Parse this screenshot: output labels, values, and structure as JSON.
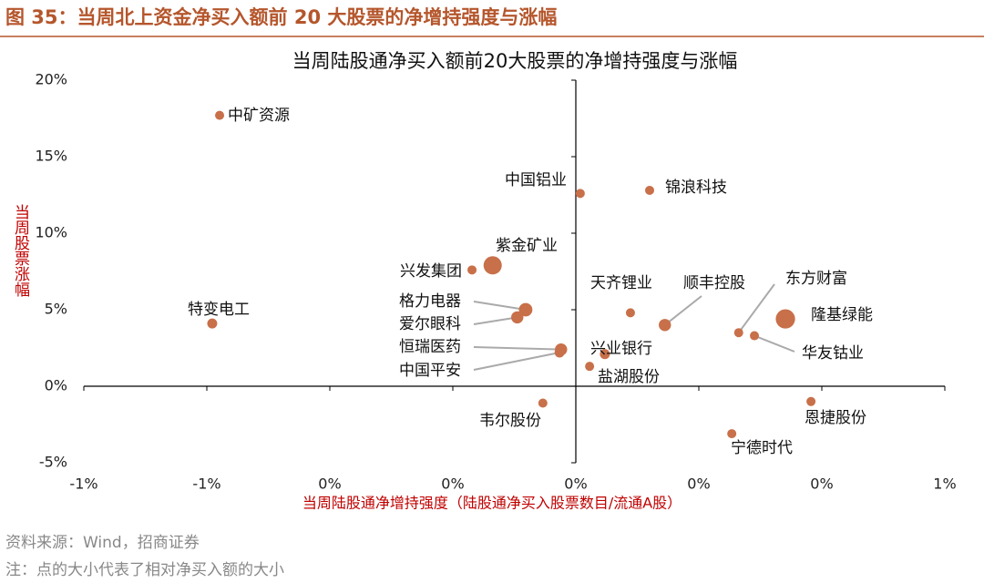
{
  "header": "图 35：当周北上资金净买入额前 20 大股票的净增持强度与涨幅",
  "footer": {
    "source": "资料来源：Wind，招商证券",
    "note": "注：点的大小代表了相对净买入额的大小"
  },
  "chart_data": {
    "type": "scatter",
    "title": "当周陆股通净买入额前20大股票的净增持强度与涨幅",
    "x_label": "当周陆股通净增持强度（陆股通净买入股票数目/流通A股）",
    "y_label": "当周股票涨幅",
    "color": "#c8704a",
    "xlim": [
      -1,
      0.75
    ],
    "xticks": [
      {
        "value": -1,
        "label": "-1%"
      },
      {
        "value": -0.75,
        "label": "-1%"
      },
      {
        "value": -0.5,
        "label": "0%"
      },
      {
        "value": -0.25,
        "label": "0%"
      },
      {
        "value": 0,
        "label": "0%"
      },
      {
        "value": 0.25,
        "label": "0%"
      },
      {
        "value": 0.5,
        "label": "0%"
      },
      {
        "value": 0.75,
        "label": "1%"
      }
    ],
    "ylim": [
      -5,
      20
    ],
    "yticks": [
      {
        "value": -5,
        "label": "-5%"
      },
      {
        "value": 0,
        "label": "0%"
      },
      {
        "value": 5,
        "label": "5%"
      },
      {
        "value": 10,
        "label": "10%"
      },
      {
        "value": 15,
        "label": "15%"
      },
      {
        "value": 20,
        "label": "20%"
      }
    ],
    "labels": [
      "中矿资源",
      "特变电工",
      "中国铝业",
      "锦浪科技",
      "兴发集团",
      "紫金矿业",
      "格力电器",
      "爱尔眼科",
      "恒瑞医药",
      "中国平安",
      "天齐锂业",
      "顺丰控股",
      "兴业银行",
      "盐湖股份",
      "东方财富",
      "华友钴业",
      "隆基绿能",
      "韦尔股份",
      "恩捷股份",
      "宁德时代"
    ],
    "x": [
      -0.724,
      -0.739,
      0.009,
      0.15,
      -0.211,
      -0.169,
      -0.102,
      -0.119,
      -0.03,
      -0.033,
      0.111,
      0.181,
      0.059,
      0.028,
      0.331,
      0.363,
      0.426,
      -0.067,
      0.478,
      0.317
    ],
    "values": [
      17.7,
      4.1,
      12.6,
      12.8,
      7.6,
      7.9,
      5.0,
      4.5,
      2.4,
      2.2,
      4.8,
      4.0,
      2.1,
      1.3,
      3.5,
      3.3,
      4.4,
      -1.1,
      -1.0,
      -3.1
    ],
    "sizes": [
      1,
      1.2,
      1,
      1,
      1,
      4,
      2.2,
      1.8,
      1.8,
      1.2,
      1,
      1.8,
      1.2,
      1,
      1,
      1,
      4.5,
      1,
      1,
      1
    ]
  }
}
